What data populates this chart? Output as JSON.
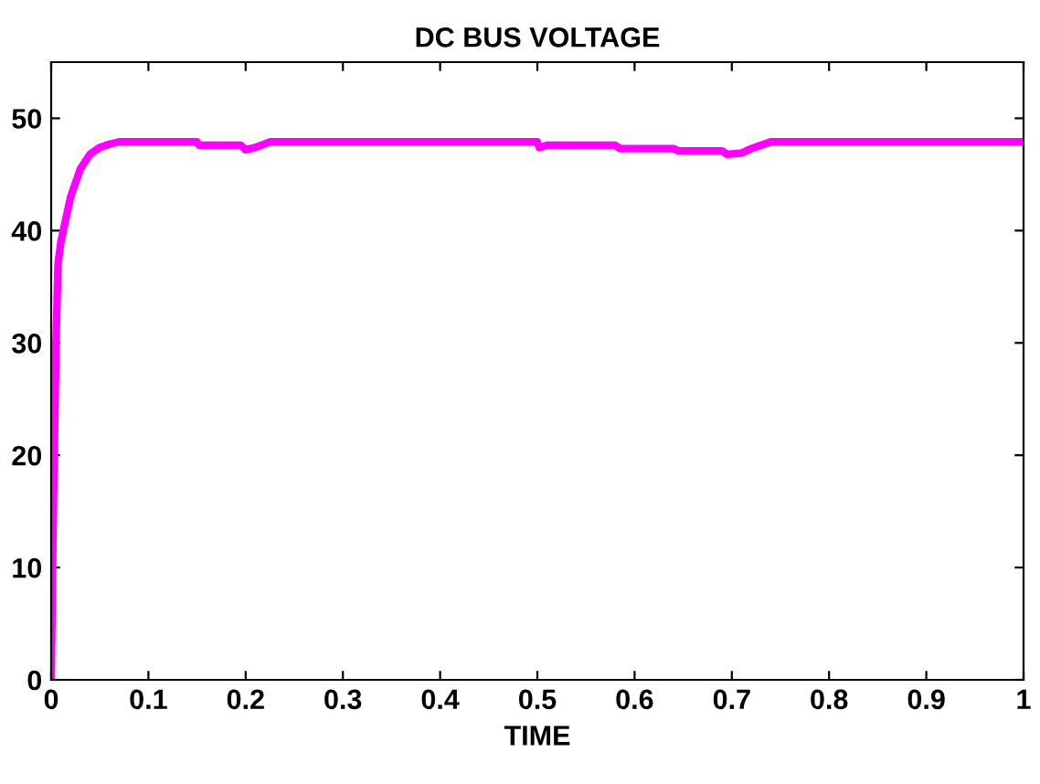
{
  "chart_data": {
    "type": "line",
    "title": "DC BUS VOLTAGE",
    "xlabel": "TIME",
    "xlim": [
      0,
      1
    ],
    "ylim": [
      0,
      55
    ],
    "xticks": [
      0,
      0.1,
      0.2,
      0.3,
      0.4,
      0.5,
      0.6,
      0.7,
      0.8,
      0.9,
      1
    ],
    "yticks": [
      0,
      10,
      20,
      30,
      40,
      50
    ],
    "grid": false,
    "series": [
      {
        "color": "#ff00ff",
        "x": [
          0,
          0.002,
          0.005,
          0.007,
          0.01,
          0.02,
          0.03,
          0.04,
          0.05,
          0.06,
          0.07,
          0.15,
          0.152,
          0.195,
          0.2,
          0.21,
          0.225,
          0.5,
          0.502,
          0.51,
          0.58,
          0.585,
          0.64,
          0.645,
          0.69,
          0.695,
          0.71,
          0.72,
          0.73,
          0.74,
          1.0
        ],
        "values": [
          0,
          14,
          30,
          37,
          39,
          43,
          45.5,
          46.8,
          47.4,
          47.7,
          47.9,
          47.9,
          47.6,
          47.6,
          47.2,
          47.4,
          47.9,
          47.9,
          47.4,
          47.6,
          47.6,
          47.3,
          47.3,
          47.1,
          47.1,
          46.8,
          46.9,
          47.3,
          47.6,
          47.9,
          47.9
        ]
      }
    ]
  }
}
